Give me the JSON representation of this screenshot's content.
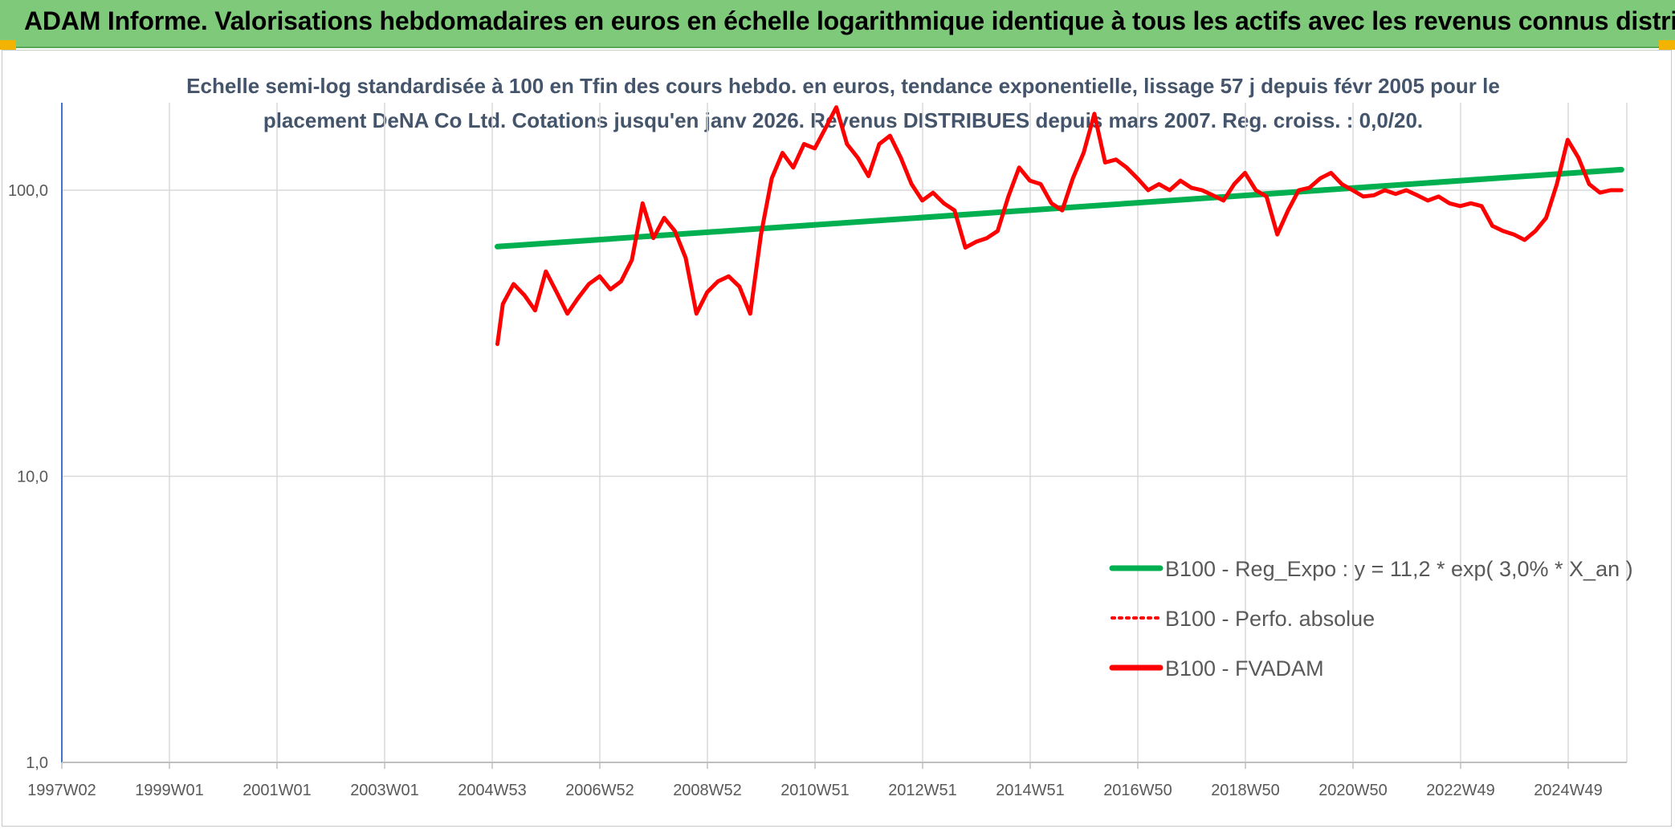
{
  "banner": {
    "title": "ADAM Informe. Valorisations hebdomadaires en euros en échelle logarithmique identique à tous les actifs avec les revenus connus distribués",
    "color": "#7fc97a"
  },
  "chart_data": {
    "type": "line",
    "title": "Echelle semi-log standardisée à 100 en Tfin des cours hebdo. en euros, tendance exponentielle, lissage 57 j depuis févr 2005 pour le placement DeNA Co Ltd. Cotations jusqu'en janv 2026. Revenus DISTRIBUES depuis mars 2007. Reg. croiss. : 0,0/20.",
    "y_scale": "log",
    "ylim": [
      1,
      200
    ],
    "y_ticks": [
      "1,0",
      "10,0",
      "100,0"
    ],
    "x_ticks": [
      "1997W02",
      "1999W01",
      "2001W01",
      "2003W01",
      "2004W53",
      "2006W52",
      "2008W52",
      "2010W51",
      "2012W51",
      "2014W51",
      "2016W50",
      "2018W50",
      "2020W50",
      "2022W49",
      "2024W49"
    ],
    "xlim": [
      1997.0,
      2026.1
    ],
    "grid": true,
    "legend_position": "lower-right",
    "series": [
      {
        "name": "B100 - Reg_Expo : y = 11,2 * exp( 3,0% *  X_an )",
        "color": "#00b050",
        "style": "solid",
        "x": [
          2005.1,
          2026.0
        ],
        "y": [
          63.5,
          118
        ]
      },
      {
        "name": "B100 - Perfo. absolue",
        "color": "#ff0000",
        "style": "dotted",
        "x": [],
        "y": []
      },
      {
        "name": "B100 - FVADAM",
        "color": "#ff0000",
        "style": "solid",
        "x": [
          2005.1,
          2005.2,
          2005.4,
          2005.6,
          2005.8,
          2006.0,
          2006.2,
          2006.4,
          2006.6,
          2006.8,
          2007.0,
          2007.2,
          2007.4,
          2007.6,
          2007.8,
          2008.0,
          2008.2,
          2008.4,
          2008.6,
          2008.8,
          2009.0,
          2009.2,
          2009.4,
          2009.6,
          2009.8,
          2010.0,
          2010.2,
          2010.4,
          2010.6,
          2010.8,
          2011.0,
          2011.2,
          2011.4,
          2011.6,
          2011.8,
          2012.0,
          2012.2,
          2012.4,
          2012.6,
          2012.8,
          2013.0,
          2013.2,
          2013.4,
          2013.6,
          2013.8,
          2014.0,
          2014.2,
          2014.4,
          2014.6,
          2014.8,
          2015.0,
          2015.2,
          2015.4,
          2015.6,
          2015.8,
          2016.0,
          2016.2,
          2016.4,
          2016.6,
          2016.8,
          2017.0,
          2017.2,
          2017.4,
          2017.6,
          2017.8,
          2018.0,
          2018.2,
          2018.4,
          2018.6,
          2018.8,
          2019.0,
          2019.2,
          2019.4,
          2019.6,
          2019.8,
          2020.0,
          2020.2,
          2020.4,
          2020.6,
          2020.8,
          2021.0,
          2021.2,
          2021.4,
          2021.6,
          2021.8,
          2022.0,
          2022.2,
          2022.4,
          2022.6,
          2022.8,
          2023.0,
          2023.2,
          2023.4,
          2023.6,
          2023.8,
          2024.0,
          2024.2,
          2024.4,
          2024.6,
          2024.8,
          2025.0,
          2025.2,
          2025.4,
          2025.6,
          2025.8,
          2026.0
        ],
        "y": [
          29,
          40,
          47,
          43,
          38,
          52,
          44,
          37,
          42,
          47,
          50,
          45,
          48,
          57,
          90,
          68,
          80,
          72,
          58,
          37,
          44,
          48,
          50,
          46,
          37,
          70,
          110,
          135,
          120,
          145,
          140,
          165,
          195,
          145,
          130,
          112,
          145,
          155,
          130,
          105,
          92,
          98,
          90,
          85,
          63,
          66,
          68,
          72,
          95,
          120,
          108,
          105,
          90,
          85,
          110,
          135,
          185,
          125,
          128,
          120,
          110,
          100,
          105,
          100,
          108,
          102,
          100,
          96,
          92,
          105,
          115,
          100,
          95,
          70,
          85,
          100,
          102,
          110,
          115,
          105,
          100,
          95,
          96,
          100,
          97,
          100,
          96,
          92,
          95,
          90,
          88,
          90,
          88,
          75,
          72,
          70,
          67,
          72,
          80,
          105,
          150,
          130,
          105,
          98,
          100,
          100
        ]
      }
    ]
  }
}
